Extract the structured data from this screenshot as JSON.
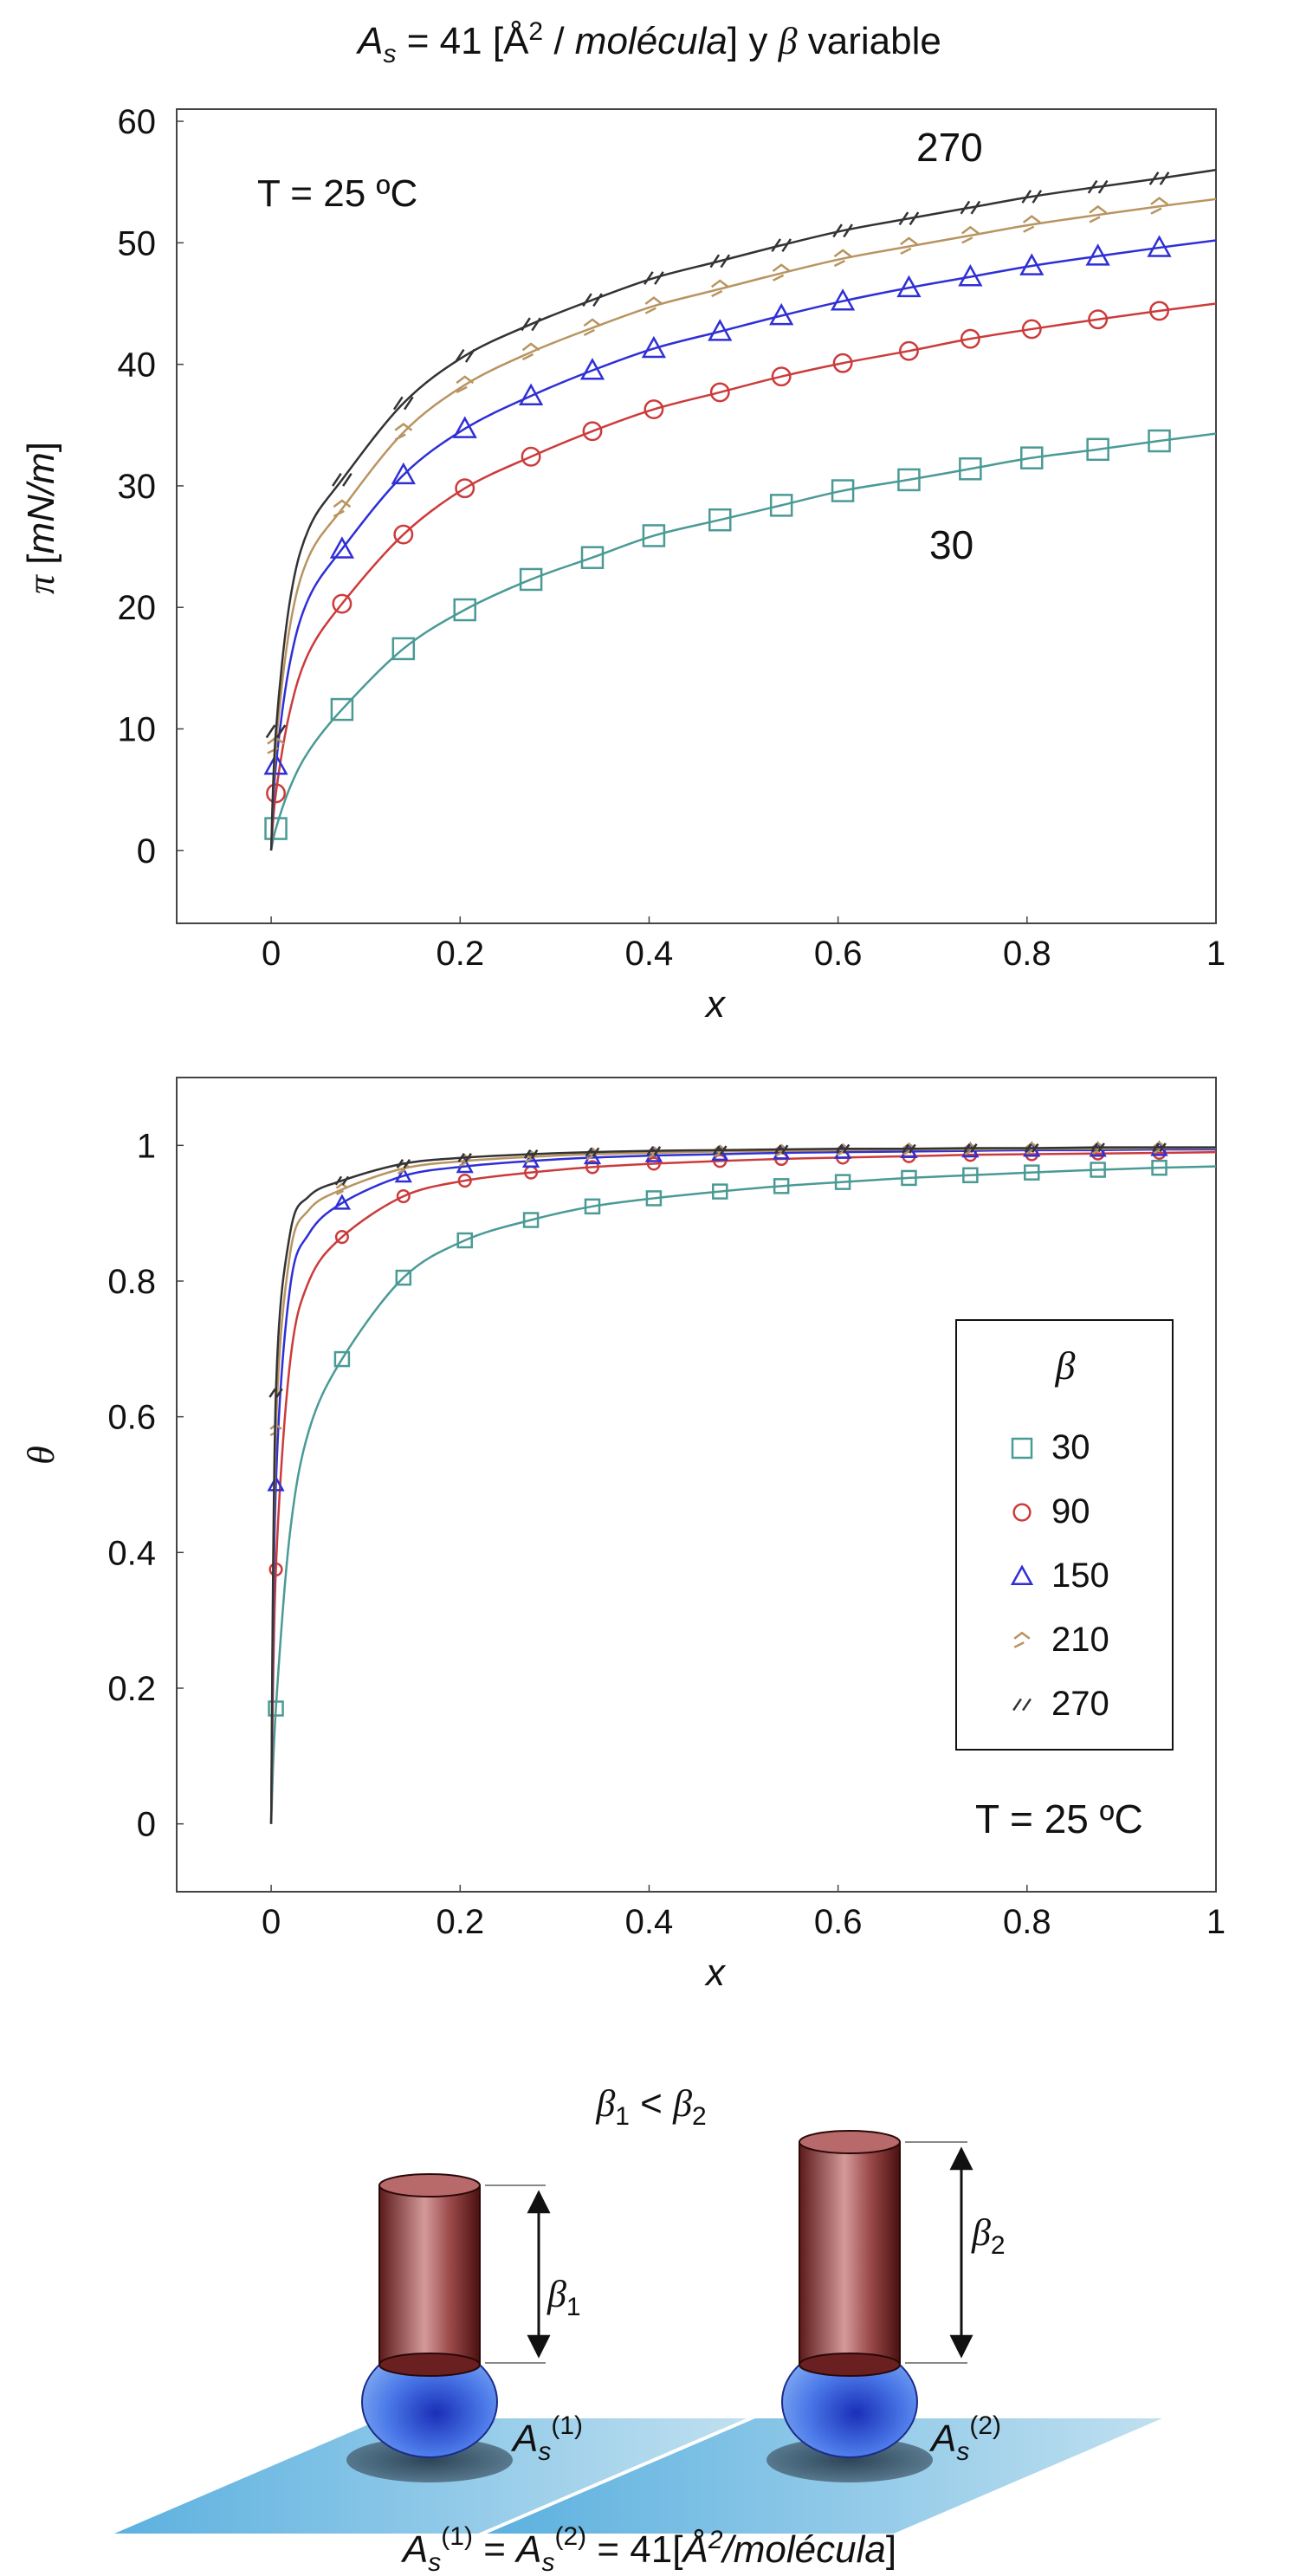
{
  "figure_title": {
    "a": "A",
    "a_sub": "s",
    "eq": " = 41 [Å",
    "sup": "2",
    "slash": " / ",
    "mol": "molécula",
    "close": "] y ",
    "beta": "β",
    "rest": " variable"
  },
  "chart_data": [
    {
      "type": "line",
      "ylabel_symbol": "π",
      "ylabel_unit_open": " [",
      "ylabel_unit": "mN/m",
      "ylabel_unit_close": "]",
      "xlabel": "x",
      "xlim": [
        -0.1,
        1.0
      ],
      "ylim": [
        -6,
        61
      ],
      "xticks": [
        0,
        0.2,
        0.4,
        0.6,
        0.8,
        1
      ],
      "xtick_labels": [
        "0",
        "0.2",
        "0.4",
        "0.6",
        "0.8",
        "1"
      ],
      "yticks": [
        0,
        10,
        20,
        30,
        40,
        50,
        60
      ],
      "ytick_labels": [
        "0",
        "10",
        "20",
        "30",
        "40",
        "50",
        "60"
      ],
      "annotations": {
        "temperature": "T = 25 ºC",
        "top_curve": "270",
        "bottom_curve": "30"
      },
      "marker_x": [
        0.005,
        0.075,
        0.14,
        0.205,
        0.275,
        0.34,
        0.405,
        0.475,
        0.54,
        0.605,
        0.675,
        0.74,
        0.805,
        0.875,
        0.94
      ],
      "series": [
        {
          "name": "30",
          "color": "#4a9a95",
          "marker": "square",
          "values": [
            1.8,
            11.6,
            16.6,
            19.8,
            22.3,
            24.1,
            25.9,
            27.2,
            28.4,
            29.6,
            30.5,
            31.4,
            32.3,
            33.0,
            33.7
          ],
          "curve_x": [
            0,
            0.005,
            0.02,
            0.04,
            0.075,
            0.14,
            0.205,
            0.275,
            0.34,
            0.405,
            0.475,
            0.54,
            0.605,
            0.675,
            0.74,
            0.805,
            0.875,
            0.94,
            1.0
          ],
          "curve_y": [
            0,
            1.8,
            5.2,
            8.2,
            11.6,
            16.6,
            19.8,
            22.3,
            24.1,
            25.9,
            27.2,
            28.4,
            29.6,
            30.5,
            31.4,
            32.3,
            33.0,
            33.7,
            34.3
          ]
        },
        {
          "name": "90",
          "color": "#cc3b3b",
          "marker": "circle",
          "values": [
            4.7,
            20.3,
            26.0,
            29.8,
            32.4,
            34.5,
            36.3,
            37.7,
            39.0,
            40.1,
            41.1,
            42.1,
            42.9,
            43.7,
            44.4
          ],
          "curve_x": [
            0,
            0.005,
            0.02,
            0.04,
            0.075,
            0.14,
            0.205,
            0.275,
            0.34,
            0.405,
            0.475,
            0.54,
            0.605,
            0.675,
            0.74,
            0.805,
            0.875,
            0.94,
            1.0
          ],
          "curve_y": [
            0,
            4.7,
            11.5,
            16.3,
            20.3,
            26.0,
            29.8,
            32.4,
            34.5,
            36.3,
            37.7,
            39.0,
            40.1,
            41.1,
            42.1,
            42.9,
            43.7,
            44.4,
            45.0
          ]
        },
        {
          "name": "150",
          "color": "#2f2fd6",
          "marker": "triangle",
          "values": [
            7.0,
            24.8,
            30.9,
            34.7,
            37.4,
            39.5,
            41.3,
            42.7,
            44.0,
            45.2,
            46.3,
            47.2,
            48.1,
            48.9,
            49.6
          ],
          "curve_x": [
            0,
            0.005,
            0.02,
            0.04,
            0.075,
            0.14,
            0.205,
            0.275,
            0.34,
            0.405,
            0.475,
            0.54,
            0.605,
            0.675,
            0.74,
            0.805,
            0.875,
            0.94,
            1.0
          ],
          "curve_y": [
            0,
            7.0,
            15.5,
            20.8,
            24.8,
            30.9,
            34.7,
            37.4,
            39.5,
            41.3,
            42.7,
            44.0,
            45.2,
            46.3,
            47.2,
            48.1,
            48.9,
            49.6,
            50.2
          ]
        },
        {
          "name": "210",
          "color": "#b89460",
          "marker": "hook",
          "values": [
            8.6,
            28.1,
            34.4,
            38.3,
            41.0,
            43.0,
            44.8,
            46.2,
            47.5,
            48.7,
            49.7,
            50.6,
            51.5,
            52.3,
            53.0
          ],
          "curve_x": [
            0,
            0.005,
            0.02,
            0.04,
            0.075,
            0.14,
            0.205,
            0.275,
            0.34,
            0.405,
            0.475,
            0.54,
            0.605,
            0.675,
            0.74,
            0.805,
            0.875,
            0.94,
            1.0
          ],
          "curve_y": [
            0,
            8.6,
            18.5,
            24.2,
            28.1,
            34.4,
            38.3,
            41.0,
            43.0,
            44.8,
            46.2,
            47.5,
            48.7,
            49.7,
            50.6,
            51.5,
            52.3,
            53.0,
            53.6
          ]
        },
        {
          "name": "270",
          "color": "#333333",
          "marker": "slashes",
          "values": [
            9.8,
            30.5,
            36.8,
            40.7,
            43.3,
            45.3,
            47.1,
            48.5,
            49.8,
            51.0,
            52.0,
            52.9,
            53.8,
            54.6,
            55.3
          ],
          "curve_x": [
            0,
            0.005,
            0.02,
            0.04,
            0.075,
            0.14,
            0.205,
            0.275,
            0.34,
            0.405,
            0.475,
            0.54,
            0.605,
            0.675,
            0.74,
            0.805,
            0.875,
            0.94,
            1.0
          ],
          "curve_y": [
            0,
            9.8,
            20.6,
            26.5,
            30.5,
            36.8,
            40.7,
            43.3,
            45.3,
            47.1,
            48.5,
            49.8,
            51.0,
            52.0,
            52.9,
            53.8,
            54.6,
            55.3,
            56.0
          ]
        }
      ]
    },
    {
      "type": "line",
      "ylabel": "θ",
      "xlabel": "x",
      "xlim": [
        -0.1,
        1.0
      ],
      "ylim": [
        -0.1,
        1.1
      ],
      "xticks": [
        0,
        0.2,
        0.4,
        0.6,
        0.8,
        1
      ],
      "xtick_labels": [
        "0",
        "0.2",
        "0.4",
        "0.6",
        "0.8",
        "1"
      ],
      "yticks": [
        0,
        0.2,
        0.4,
        0.6,
        0.8,
        1
      ],
      "ytick_labels": [
        "0",
        "0.2",
        "0.4",
        "0.6",
        "0.8",
        "1"
      ],
      "annotations": {
        "temperature": "T = 25 ºC"
      },
      "legend": {
        "title": "β",
        "position": "center-right",
        "entries": [
          "30",
          "90",
          "150",
          "210",
          "270"
        ]
      },
      "marker_x": [
        0.005,
        0.075,
        0.14,
        0.205,
        0.275,
        0.34,
        0.405,
        0.475,
        0.54,
        0.605,
        0.675,
        0.74,
        0.805,
        0.875,
        0.94
      ],
      "series": [
        {
          "name": "30",
          "color": "#4a9a95",
          "marker": "square",
          "values": [
            0.17,
            0.685,
            0.805,
            0.86,
            0.89,
            0.91,
            0.922,
            0.932,
            0.94,
            0.946,
            0.952,
            0.956,
            0.96,
            0.964,
            0.967
          ],
          "curve_x": [
            0,
            0.005,
            0.02,
            0.04,
            0.075,
            0.14,
            0.205,
            0.275,
            0.34,
            0.405,
            0.475,
            0.54,
            0.605,
            0.675,
            0.74,
            0.805,
            0.875,
            0.94,
            1.0
          ],
          "curve_y": [
            0,
            0.17,
            0.43,
            0.58,
            0.685,
            0.805,
            0.86,
            0.89,
            0.91,
            0.922,
            0.932,
            0.94,
            0.946,
            0.952,
            0.956,
            0.96,
            0.964,
            0.967,
            0.969
          ]
        },
        {
          "name": "90",
          "color": "#cc3b3b",
          "marker": "circle",
          "values": [
            0.375,
            0.865,
            0.925,
            0.948,
            0.96,
            0.968,
            0.973,
            0.977,
            0.98,
            0.982,
            0.984,
            0.986,
            0.987,
            0.988,
            0.989
          ],
          "curve_x": [
            0,
            0.005,
            0.02,
            0.04,
            0.075,
            0.14,
            0.205,
            0.275,
            0.34,
            0.405,
            0.475,
            0.54,
            0.605,
            0.675,
            0.74,
            0.805,
            0.875,
            0.94,
            1.0
          ],
          "curve_y": [
            0,
            0.375,
            0.68,
            0.8,
            0.865,
            0.925,
            0.948,
            0.96,
            0.968,
            0.973,
            0.977,
            0.98,
            0.982,
            0.984,
            0.986,
            0.987,
            0.988,
            0.989,
            0.99
          ]
        },
        {
          "name": "150",
          "color": "#2f2fd6",
          "marker": "triangle",
          "values": [
            0.5,
            0.915,
            0.955,
            0.969,
            0.977,
            0.982,
            0.985,
            0.987,
            0.989,
            0.99,
            0.991,
            0.992,
            0.993,
            0.993,
            0.994
          ],
          "curve_x": [
            0,
            0.005,
            0.02,
            0.04,
            0.075,
            0.14,
            0.205,
            0.275,
            0.34,
            0.405,
            0.475,
            0.54,
            0.605,
            0.675,
            0.74,
            0.805,
            0.875,
            0.94,
            1.0
          ],
          "curve_y": [
            0,
            0.5,
            0.79,
            0.87,
            0.915,
            0.955,
            0.969,
            0.977,
            0.982,
            0.985,
            0.987,
            0.989,
            0.99,
            0.991,
            0.992,
            0.993,
            0.993,
            0.994,
            0.994
          ]
        },
        {
          "name": "210",
          "color": "#b89460",
          "marker": "hook",
          "values": [
            0.58,
            0.935,
            0.966,
            0.977,
            0.983,
            0.987,
            0.989,
            0.991,
            0.992,
            0.993,
            0.994,
            0.994,
            0.995,
            0.995,
            0.996
          ],
          "curve_x": [
            0,
            0.005,
            0.02,
            0.04,
            0.075,
            0.14,
            0.205,
            0.275,
            0.34,
            0.405,
            0.475,
            0.54,
            0.605,
            0.675,
            0.74,
            0.805,
            0.875,
            0.94,
            1.0
          ],
          "curve_y": [
            0,
            0.58,
            0.84,
            0.905,
            0.935,
            0.966,
            0.977,
            0.983,
            0.987,
            0.989,
            0.991,
            0.992,
            0.993,
            0.994,
            0.994,
            0.995,
            0.995,
            0.996,
            0.996
          ]
        },
        {
          "name": "270",
          "color": "#333333",
          "marker": "slashes",
          "values": [
            0.635,
            0.948,
            0.973,
            0.982,
            0.987,
            0.99,
            0.992,
            0.993,
            0.994,
            0.995,
            0.995,
            0.996,
            0.996,
            0.997,
            0.997
          ],
          "curve_x": [
            0,
            0.005,
            0.02,
            0.04,
            0.075,
            0.14,
            0.205,
            0.275,
            0.34,
            0.405,
            0.475,
            0.54,
            0.605,
            0.675,
            0.74,
            0.805,
            0.875,
            0.94,
            1.0
          ],
          "curve_y": [
            0,
            0.635,
            0.87,
            0.925,
            0.948,
            0.973,
            0.982,
            0.987,
            0.99,
            0.992,
            0.993,
            0.994,
            0.995,
            0.995,
            0.996,
            0.996,
            0.997,
            0.997,
            0.997
          ]
        }
      ]
    }
  ],
  "diagram": {
    "beta_symbol": "β",
    "sub_1": "1",
    "sub_2": "2",
    "lt": " < ",
    "a": "A",
    "a_sub": "s",
    "sup_1": "(1)",
    "sup_2": "(2)",
    "equation_mid": " = ",
    "equation_val": " = 41[",
    "equation_unit_a": "Å",
    "equation_unit_sup": "2",
    "equation_unit_b": "/molécula",
    "equation_close": "]"
  }
}
